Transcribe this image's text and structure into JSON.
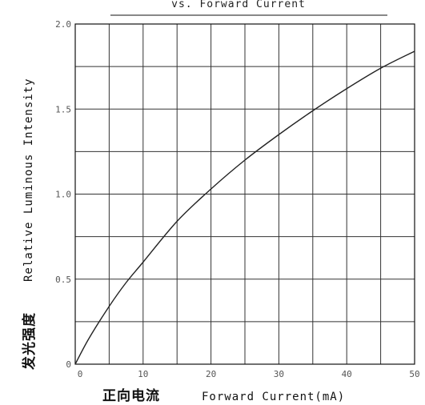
{
  "chart_data": {
    "type": "line",
    "title": "vs. Forward Current",
    "xlabel_cn": "正向电流",
    "xlabel": "Forward Current(mA)",
    "ylabel_cn": "发光强度",
    "ylabel": "Relative Luminous Intensity",
    "xlim": [
      0,
      50
    ],
    "ylim": [
      0,
      2.0
    ],
    "x_ticks": [
      0,
      10,
      20,
      30,
      40,
      50
    ],
    "y_ticks": [
      0,
      0.5,
      1.0,
      1.5,
      2.0
    ],
    "x_tick_labels": [
      "0",
      "10",
      "20",
      "30",
      "40",
      "50"
    ],
    "y_tick_labels": [
      "0",
      "0.5",
      "1.0",
      "1.5",
      "2.0"
    ],
    "grid": true,
    "series": [
      {
        "x": [
          0,
          2,
          5,
          7.5,
          10,
          15,
          20,
          25,
          30,
          35,
          40,
          45,
          50
        ],
        "y": [
          0,
          0.15,
          0.34,
          0.48,
          0.6,
          0.84,
          1.03,
          1.2,
          1.35,
          1.49,
          1.62,
          1.74,
          1.84
        ]
      }
    ]
  }
}
